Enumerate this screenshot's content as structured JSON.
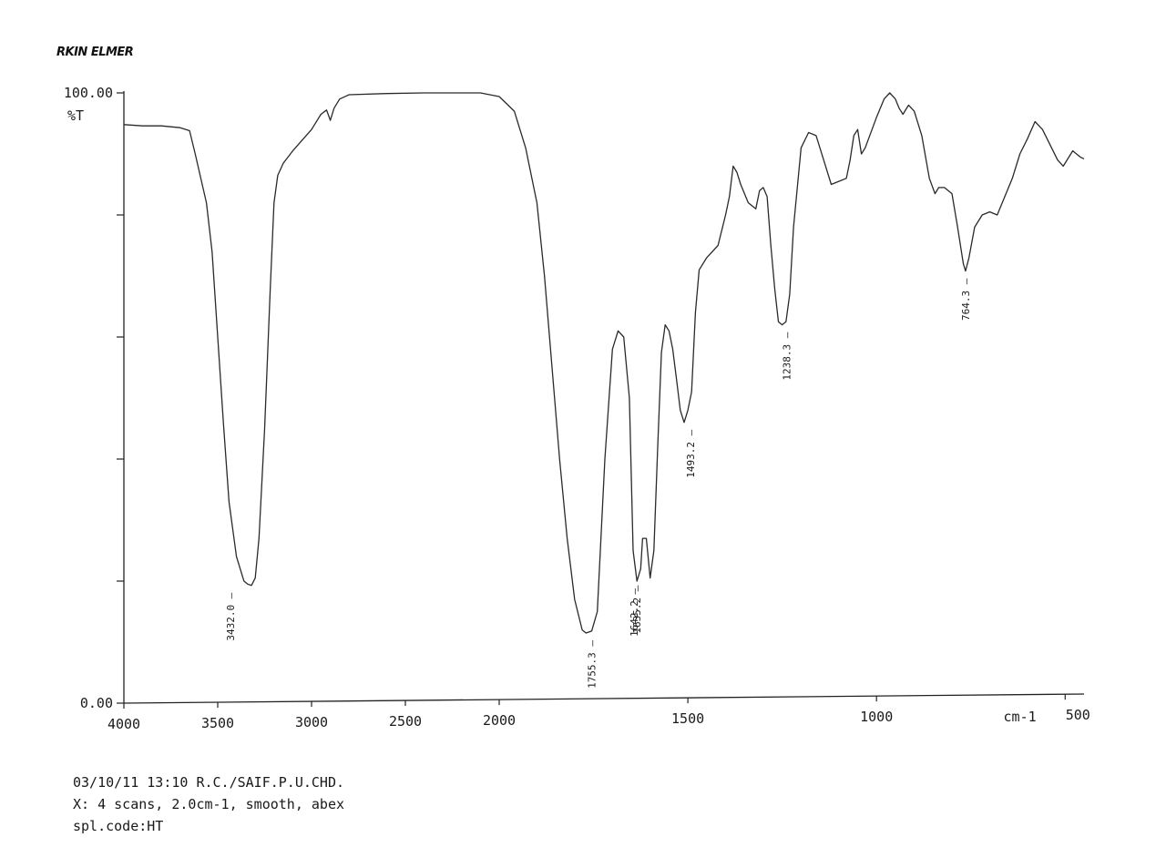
{
  "header": {
    "brand": "RKIN ELMER"
  },
  "footer": {
    "line1": "03/10/11 13:10 R.C./SAIF.P.U.CHD.",
    "line2": "X: 4 scans, 2.0cm-1, smooth, abex",
    "line3": "spl.code:HT"
  },
  "chart_data": {
    "type": "line",
    "ylabel": "%T",
    "xlabel": "cm-1",
    "xlim": [
      4000,
      450
    ],
    "ylim": [
      0,
      100
    ],
    "x_reversed": true,
    "x_ticks": [
      4000,
      3500,
      3000,
      2500,
      2000,
      1500,
      1000,
      500
    ],
    "x_tick_labels": [
      "4000",
      "3500",
      "3000",
      "2500",
      "2000",
      "1500",
      "1000",
      "500"
    ],
    "y_ticks": [
      0,
      20,
      40,
      60,
      80,
      100
    ],
    "y_tick_labels": [
      "0.00",
      "",
      "",
      "",
      "",
      "100.00"
    ],
    "grid": false,
    "series": [
      {
        "values_xy": [
          [
            4000,
            94.8
          ],
          [
            3900,
            94.6
          ],
          [
            3800,
            94.6
          ],
          [
            3700,
            94.3
          ],
          [
            3650,
            93.8
          ],
          [
            3620,
            90
          ],
          [
            3560,
            82
          ],
          [
            3530,
            74
          ],
          [
            3500,
            60
          ],
          [
            3470,
            46
          ],
          [
            3440,
            33
          ],
          [
            3400,
            24
          ],
          [
            3360,
            20
          ],
          [
            3340,
            19.5
          ],
          [
            3320,
            19.3
          ],
          [
            3300,
            20.5
          ],
          [
            3280,
            27
          ],
          [
            3250,
            45
          ],
          [
            3220,
            68
          ],
          [
            3200,
            82
          ],
          [
            3180,
            86.5
          ],
          [
            3150,
            88.5
          ],
          [
            3100,
            90.5
          ],
          [
            3000,
            94
          ],
          [
            2950,
            96.5
          ],
          [
            2920,
            97.2
          ],
          [
            2900,
            95.5
          ],
          [
            2880,
            97.5
          ],
          [
            2850,
            99
          ],
          [
            2800,
            99.7
          ],
          [
            2600,
            99.9
          ],
          [
            2400,
            100
          ],
          [
            2200,
            100
          ],
          [
            2100,
            100
          ],
          [
            2000,
            99.4
          ],
          [
            1960,
            97
          ],
          [
            1930,
            91
          ],
          [
            1900,
            82
          ],
          [
            1880,
            70
          ],
          [
            1860,
            55
          ],
          [
            1840,
            40
          ],
          [
            1820,
            27
          ],
          [
            1800,
            17
          ],
          [
            1780,
            12
          ],
          [
            1770,
            11.5
          ],
          [
            1755,
            11.8
          ],
          [
            1740,
            15
          ],
          [
            1720,
            40
          ],
          [
            1700,
            58
          ],
          [
            1685,
            61
          ],
          [
            1670,
            60
          ],
          [
            1655,
            50
          ],
          [
            1645,
            25
          ],
          [
            1635,
            20
          ],
          [
            1625,
            22
          ],
          [
            1620,
            27
          ],
          [
            1610,
            27
          ],
          [
            1600,
            20.5
          ],
          [
            1590,
            25
          ],
          [
            1580,
            42
          ],
          [
            1570,
            57.5
          ],
          [
            1560,
            62
          ],
          [
            1550,
            61
          ],
          [
            1540,
            58
          ],
          [
            1530,
            53
          ],
          [
            1520,
            48
          ],
          [
            1510,
            46
          ],
          [
            1500,
            48
          ],
          [
            1490,
            51
          ],
          [
            1480,
            64
          ],
          [
            1470,
            71
          ],
          [
            1450,
            73
          ],
          [
            1420,
            75
          ],
          [
            1400,
            80
          ],
          [
            1390,
            83
          ],
          [
            1380,
            88
          ],
          [
            1370,
            87
          ],
          [
            1360,
            85
          ],
          [
            1340,
            82
          ],
          [
            1320,
            81
          ],
          [
            1310,
            84
          ],
          [
            1300,
            84.5
          ],
          [
            1290,
            83
          ],
          [
            1280,
            75
          ],
          [
            1270,
            68
          ],
          [
            1260,
            62.5
          ],
          [
            1250,
            62
          ],
          [
            1240,
            62.5
          ],
          [
            1230,
            67
          ],
          [
            1220,
            78
          ],
          [
            1200,
            91
          ],
          [
            1180,
            93.5
          ],
          [
            1160,
            93
          ],
          [
            1140,
            89
          ],
          [
            1120,
            85
          ],
          [
            1100,
            85.5
          ],
          [
            1080,
            86
          ],
          [
            1070,
            89
          ],
          [
            1060,
            93
          ],
          [
            1050,
            94
          ],
          [
            1040,
            90
          ],
          [
            1030,
            91
          ],
          [
            1000,
            96
          ],
          [
            980,
            99
          ],
          [
            965,
            100
          ],
          [
            950,
            99
          ],
          [
            940,
            97.5
          ],
          [
            930,
            96.5
          ],
          [
            915,
            98
          ],
          [
            900,
            97
          ],
          [
            880,
            93
          ],
          [
            860,
            86
          ],
          [
            845,
            83.5
          ],
          [
            835,
            84.5
          ],
          [
            820,
            84.5
          ],
          [
            800,
            83.5
          ],
          [
            785,
            78
          ],
          [
            770,
            72
          ],
          [
            764,
            70.8
          ],
          [
            755,
            73
          ],
          [
            740,
            78
          ],
          [
            720,
            80
          ],
          [
            700,
            80.5
          ],
          [
            680,
            80
          ],
          [
            660,
            83
          ],
          [
            640,
            86
          ],
          [
            620,
            90
          ],
          [
            600,
            92.5
          ],
          [
            580,
            95.3
          ],
          [
            560,
            94
          ],
          [
            540,
            91.5
          ],
          [
            520,
            89
          ],
          [
            505,
            88
          ],
          [
            490,
            89.5
          ],
          [
            480,
            90.5
          ],
          [
            470,
            90
          ],
          [
            460,
            89.5
          ],
          [
            450,
            89.2
          ]
        ]
      }
    ],
    "annotations": [
      {
        "x": 3432.0,
        "y": 19.3,
        "label": "3432.0"
      },
      {
        "x": 1755.3,
        "y": 11.5,
        "label": "1755.3"
      },
      {
        "x": 1642.2,
        "y": 20.0,
        "label": "1642.2"
      },
      {
        "x": 1635.2,
        "y": 20.5,
        "label": "1635.2"
      },
      {
        "x": 1493.2,
        "y": 46.0,
        "label": "1493.2"
      },
      {
        "x": 1238.3,
        "y": 62.0,
        "label": "1238.3"
      },
      {
        "x": 764.3,
        "y": 70.8,
        "label": "764.3"
      }
    ]
  }
}
